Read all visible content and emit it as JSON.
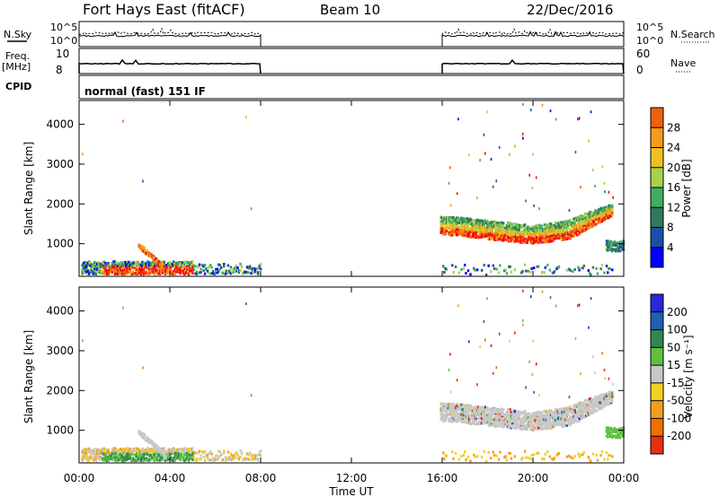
{
  "header": {
    "station": "Fort Hays East (fitACF)",
    "beam": "Beam 10",
    "date": "22/Dec/2016"
  },
  "panels": {
    "nsky_label": "N.Sky",
    "nsearch_label": "N.Search",
    "nsky_ticks": [
      "10^5",
      "10^0"
    ],
    "nsearch_ticks": [
      "10^5",
      "10^0"
    ],
    "freq_label": "Freq.",
    "freq_unit": "[MHz]",
    "freq_ticks": [
      "10",
      "8"
    ],
    "nave_label": "Nave",
    "nave_ticks": [
      "60",
      "0"
    ],
    "cpid_label": "CPID",
    "cpid_text": "normal (fast) 151 IF"
  },
  "colors": {
    "power": [
      "#0000ff",
      "#1a4fa8",
      "#2f7a5a",
      "#3fae5f",
      "#a6d24a",
      "#f0c020",
      "#f59a1a",
      "#f06010",
      "#e02010",
      "#ff0000"
    ],
    "velocity": [
      "#2828d8",
      "#2060b0",
      "#308850",
      "#60c040",
      "#c8c8c8",
      "#f0d020",
      "#f0a020",
      "#f07000",
      "#e83010",
      "#ff0000"
    ]
  },
  "chart_data": [
    {
      "type": "heatmap",
      "name": "power",
      "ylabel": "Slant Range [km]",
      "xlabel": "Time UT",
      "xticks": [
        "00:00",
        "04:00",
        "08:00",
        "12:00",
        "16:00",
        "20:00",
        "00:00"
      ],
      "xlim_hours": [
        0,
        24
      ],
      "ylim_km": [
        180,
        4600
      ],
      "yticks": [
        1000,
        2000,
        3000,
        4000
      ],
      "colorbar": {
        "label": "Power [dB]",
        "ticks": [
          4,
          8,
          12,
          16,
          20,
          24,
          28
        ],
        "range": [
          0,
          32
        ]
      }
    },
    {
      "type": "heatmap",
      "name": "velocity",
      "ylabel": "Slant Range [km]",
      "xlabel": "Time UT",
      "xticks": [
        "00:00",
        "04:00",
        "08:00",
        "12:00",
        "16:00",
        "20:00",
        "00:00"
      ],
      "xlim_hours": [
        0,
        24
      ],
      "ylim_km": [
        180,
        4600
      ],
      "yticks": [
        1000,
        2000,
        3000,
        4000
      ],
      "colorbar": {
        "label": "Velocity [m s⁻¹]",
        "ticks": [
          "200",
          "100",
          "50",
          "15",
          "-15",
          "-50",
          "-100",
          "-200"
        ]
      }
    }
  ]
}
